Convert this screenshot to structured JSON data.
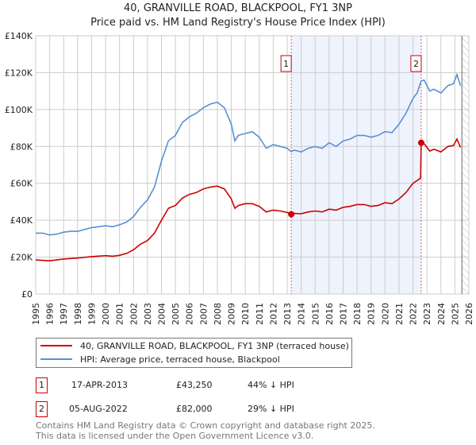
{
  "title": "40, GRANVILLE ROAD, BLACKPOOL, FY1 3NP",
  "subtitle": "Price paid vs. HM Land Registry's House Price Index (HPI)",
  "chart_data": {
    "type": "line",
    "title": "40, GRANVILLE ROAD, BLACKPOOL, FY1 3NP",
    "subtitle": "Price paid vs. HM Land Registry's House Price Index (HPI)",
    "xlabel": "",
    "ylabel": "",
    "xlim": [
      1995,
      2026
    ],
    "ylim": [
      0,
      140000
    ],
    "grid": true,
    "y_ticks": [
      0,
      20000,
      40000,
      60000,
      80000,
      100000,
      120000,
      140000
    ],
    "y_tick_labels": [
      "£0",
      "£20K",
      "£40K",
      "£60K",
      "£80K",
      "£100K",
      "£120K",
      "£140K"
    ],
    "x_ticks": [
      "1995",
      "1996",
      "1997",
      "1998",
      "1999",
      "2000",
      "2001",
      "2002",
      "2003",
      "2004",
      "2005",
      "2006",
      "2007",
      "2008",
      "2009",
      "2010",
      "2011",
      "2012",
      "2013",
      "2014",
      "2015",
      "2016",
      "2017",
      "2018",
      "2019",
      "2020",
      "2021",
      "2022",
      "2023",
      "2024",
      "2025",
      "2026"
    ],
    "shaded_region": [
      2013.29,
      2022.59
    ],
    "hatched_region": [
      2025.5,
      2026
    ],
    "colors": {
      "property": "#cc0000",
      "hpi": "#5b8fd4",
      "shade": "#eef3fd",
      "marker_line": "#e06070"
    },
    "series": [
      {
        "name": "40, GRANVILLE ROAD, BLACKPOOL, FY1 3NP (terraced house)",
        "color": "#cc0000",
        "x": [
          1995,
          1996,
          1997,
          1998,
          1999,
          2000,
          2000.5,
          2001,
          2001.5,
          2002,
          2002.5,
          2003,
          2003.5,
          2004,
          2004.5,
          2005,
          2005.5,
          2006,
          2006.5,
          2007,
          2007.5,
          2008,
          2008.5,
          2009,
          2009.25,
          2009.5,
          2010,
          2010.5,
          2011,
          2011.5,
          2012,
          2012.5,
          2013,
          2013.29,
          2013.5,
          2014,
          2014.5,
          2015,
          2015.5,
          2016,
          2016.5,
          2017,
          2017.5,
          2018,
          2018.5,
          2019,
          2019.5,
          2020,
          2020.5,
          2021,
          2021.5,
          2022,
          2022.3,
          2022.55,
          2022.59,
          2022.8,
          2023.2,
          2023.5,
          2024,
          2024.5,
          2024.9,
          2025.15,
          2025.4
        ],
        "y": [
          18500,
          18000,
          19000,
          19500,
          20300,
          20800,
          20500,
          21000,
          22000,
          24000,
          27000,
          29000,
          33000,
          40000,
          46500,
          48000,
          52000,
          54000,
          55000,
          57000,
          58000,
          58500,
          57000,
          51500,
          46500,
          48000,
          49000,
          49000,
          47500,
          44500,
          45500,
          45000,
          44200,
          43250,
          43700,
          43500,
          44500,
          45000,
          44500,
          46000,
          45500,
          47000,
          47500,
          48500,
          48500,
          47500,
          48000,
          49500,
          49000,
          51500,
          55000,
          60000,
          61500,
          63000,
          82000,
          81500,
          77500,
          78500,
          77000,
          80000,
          80500,
          84000,
          79500
        ]
      },
      {
        "name": "HPI: Average price, terraced house, Blackpool",
        "color": "#5b8fd4",
        "x": [
          1995,
          1995.5,
          1996,
          1996.5,
          1997,
          1997.5,
          1998,
          1998.5,
          1999,
          1999.5,
          2000,
          2000.5,
          2001,
          2001.5,
          2002,
          2002.5,
          2003,
          2003.5,
          2004,
          2004.5,
          2005,
          2005.5,
          2006,
          2006.5,
          2007,
          2007.5,
          2008,
          2008.5,
          2009,
          2009.25,
          2009.5,
          2010,
          2010.5,
          2011,
          2011.5,
          2012,
          2012.5,
          2013,
          2013.29,
          2013.5,
          2014,
          2014.5,
          2015,
          2015.5,
          2016,
          2016.5,
          2017,
          2017.5,
          2018,
          2018.5,
          2019,
          2019.5,
          2020,
          2020.5,
          2021,
          2021.5,
          2022,
          2022.3,
          2022.59,
          2022.8,
          2023.2,
          2023.5,
          2024,
          2024.5,
          2024.9,
          2025.15,
          2025.4
        ],
        "y": [
          33000,
          33000,
          32000,
          32500,
          33500,
          34000,
          34000,
          35000,
          36000,
          36500,
          37000,
          36500,
          37500,
          39000,
          42000,
          47000,
          51000,
          58000,
          72000,
          83000,
          86000,
          93000,
          96000,
          98000,
          101000,
          103000,
          104000,
          101000,
          92000,
          83000,
          86000,
          87000,
          88000,
          85000,
          79000,
          81000,
          80000,
          79000,
          77200,
          78000,
          77000,
          79000,
          80000,
          79000,
          82000,
          80000,
          83000,
          84000,
          86000,
          86000,
          85000,
          86000,
          88000,
          87500,
          92000,
          98000,
          106000,
          109000,
          115500,
          116000,
          110000,
          111000,
          109000,
          113000,
          114000,
          119000,
          113000
        ]
      }
    ],
    "annotations": [
      {
        "label": "1",
        "x": 2013.29,
        "y": 43250
      },
      {
        "label": "2",
        "x": 2022.59,
        "y": 82000
      }
    ]
  },
  "legend": {
    "property": "40, GRANVILLE ROAD, BLACKPOOL, FY1 3NP (terraced house)",
    "hpi": "HPI: Average price, terraced house, Blackpool"
  },
  "transactions": [
    {
      "num": "1",
      "date": "17-APR-2013",
      "price": "£43,250",
      "hpi": "44% ↓ HPI"
    },
    {
      "num": "2",
      "date": "05-AUG-2022",
      "price": "£82,000",
      "hpi": "29% ↓ HPI"
    }
  ],
  "footer": {
    "line1": "Contains HM Land Registry data © Crown copyright and database right 2025.",
    "line2": "This data is licensed under the Open Government Licence v3.0."
  }
}
